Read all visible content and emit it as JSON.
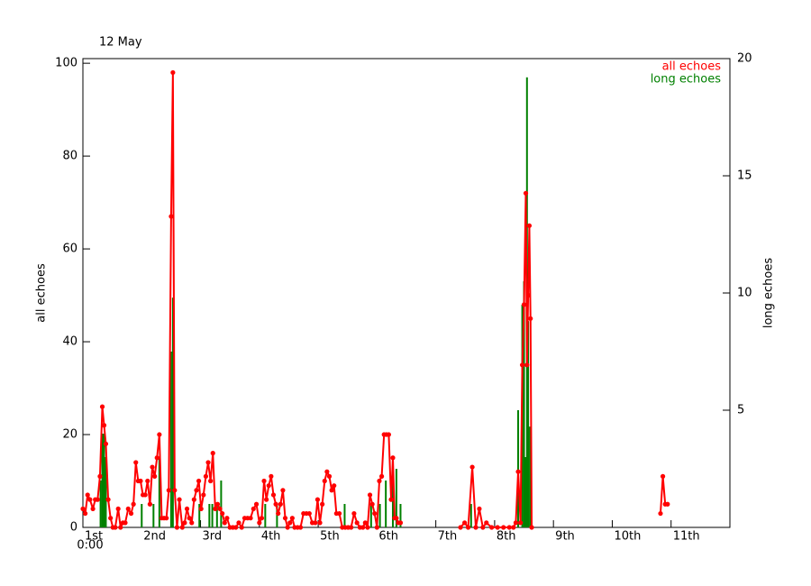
{
  "chart_data": {
    "type": "line-bar",
    "title": "12 May",
    "x_start_label": "0:00",
    "y_label": "all echoes",
    "y2_label": "long echoes",
    "xlim": [
      0,
      11
    ],
    "xticks": [
      {
        "value": 0,
        "label": "1st"
      },
      {
        "value": 1,
        "label": "2nd"
      },
      {
        "value": 2,
        "label": "3rd"
      },
      {
        "value": 3,
        "label": "4th"
      },
      {
        "value": 4,
        "label": "5th"
      },
      {
        "value": 5,
        "label": "6th"
      },
      {
        "value": 6,
        "label": "7th"
      },
      {
        "value": 7,
        "label": "8th"
      },
      {
        "value": 8,
        "label": "9th"
      },
      {
        "value": 9,
        "label": "10th"
      },
      {
        "value": 10,
        "label": "11th"
      }
    ],
    "ylim": [
      0,
      101
    ],
    "yticks": [
      0,
      20,
      40,
      60,
      80,
      100
    ],
    "y2lim": [
      0,
      20
    ],
    "y2ticks": [
      5,
      10,
      15,
      20
    ],
    "legend": "top-right",
    "series": [
      {
        "name": "all echoes",
        "color": "#ff0000",
        "type": "line",
        "x": [
          0,
          0.04,
          0.08,
          0.12,
          0.17,
          0.21,
          0.25,
          0.29,
          0.33,
          0.36,
          0.39,
          0.43,
          0.47,
          0.51,
          0.55,
          0.6,
          0.64,
          0.68,
          0.72,
          0.77,
          0.82,
          0.86,
          0.9,
          0.94,
          0.98,
          1.02,
          1.06,
          1.1,
          1.14,
          1.18,
          1.22,
          1.26,
          1.3,
          1.34,
          1.38,
          1.42,
          1.46,
          1.5,
          1.53,
          1.56,
          1.6,
          1.64,
          1.69,
          1.73,
          1.77,
          1.81,
          1.85,
          1.89,
          1.93,
          1.97,
          2.01,
          2.05,
          2.09,
          2.13,
          2.17,
          2.21,
          2.25,
          2.29,
          2.33,
          2.37,
          2.41,
          2.45,
          2.5,
          2.55,
          2.6,
          2.65,
          2.7,
          2.75,
          2.8,
          2.85,
          2.9,
          2.95,
          3.0,
          3.04,
          3.08,
          3.12,
          3.16,
          3.2,
          3.24,
          3.28,
          3.32,
          3.36,
          3.4,
          3.44,
          3.48,
          3.52,
          3.56,
          3.6,
          3.65,
          3.7,
          3.75,
          3.8,
          3.85,
          3.9,
          3.95,
          3.99,
          4.03,
          4.07,
          4.11,
          4.15,
          4.19,
          4.23,
          4.27,
          4.31,
          4.36,
          4.41,
          4.46,
          4.51,
          4.56,
          4.61,
          4.66,
          4.71,
          4.76,
          4.8,
          4.84,
          4.88,
          4.92,
          4.96,
          5.0,
          5.04,
          5.08,
          5.12,
          5.16,
          5.2,
          5.24,
          5.27,
          5.3,
          5.33,
          5.36,
          5.4,
          5.5,
          6.42,
          6.49,
          6.55,
          6.62,
          6.68,
          6.74,
          6.8,
          6.86,
          6.95,
          7.05,
          7.15,
          7.25,
          7.32,
          7.36,
          7.4,
          7.44,
          7.47,
          7.5,
          7.53,
          7.55,
          7.57,
          7.59,
          7.61,
          7.63,
          8.5,
          9.82,
          9.86,
          9.9,
          9.94
        ],
        "values": [
          4,
          3,
          7,
          6,
          4,
          6,
          6,
          11,
          26,
          22,
          18,
          6,
          2,
          0,
          0,
          4,
          0,
          1,
          1,
          4,
          3,
          5,
          14,
          10,
          10,
          7,
          7,
          10,
          5,
          13,
          11,
          15,
          20,
          2,
          2,
          2,
          8,
          67,
          98,
          8,
          0,
          6,
          0,
          1,
          4,
          2,
          1,
          6,
          8,
          10,
          4,
          7,
          11,
          14,
          10,
          16,
          4,
          5,
          4,
          3,
          1,
          2,
          0,
          0,
          0,
          1,
          0,
          2,
          2,
          2,
          4,
          5,
          1,
          2,
          10,
          6,
          9,
          11,
          7,
          5,
          3,
          5,
          8,
          2,
          0,
          1,
          2,
          0,
          0,
          0,
          3,
          3,
          3,
          1,
          1,
          6,
          1,
          5,
          10,
          12,
          11,
          8,
          9,
          3,
          3,
          0,
          0,
          0,
          0,
          3,
          1,
          0,
          0,
          1,
          0,
          7,
          5,
          3,
          0,
          10,
          11,
          20,
          20,
          20,
          6,
          15,
          2,
          2,
          1,
          1,
          null,
          0,
          1,
          0,
          13,
          0,
          4,
          0,
          1,
          0,
          0,
          0,
          0,
          0,
          1,
          12,
          1,
          35,
          48,
          72,
          35,
          50,
          65,
          45,
          0,
          null,
          3,
          11,
          5,
          5
        ]
      },
      {
        "name": "long echoes",
        "color": "#008000",
        "type": "bar",
        "axis": "y2",
        "x": [
          0.3,
          0.33,
          0.36,
          0.39,
          1.0,
          1.2,
          1.3,
          1.5,
          1.53,
          1.98,
          2.15,
          2.2,
          2.28,
          2.35,
          3.1,
          3.3,
          4.45,
          4.9,
          5.05,
          5.15,
          5.27,
          5.33,
          5.4,
          6.6,
          7.4,
          7.47,
          7.5,
          7.53,
          7.55,
          7.57,
          7.6
        ],
        "values": [
          2,
          4,
          4,
          3,
          1,
          1,
          3,
          7.5,
          9.8,
          1,
          1,
          1,
          1,
          2,
          1,
          1,
          1,
          1,
          1,
          2,
          3,
          2.5,
          1,
          1,
          5,
          9.5,
          10.5,
          3,
          19.2,
          8.8,
          4.3
        ]
      }
    ]
  }
}
